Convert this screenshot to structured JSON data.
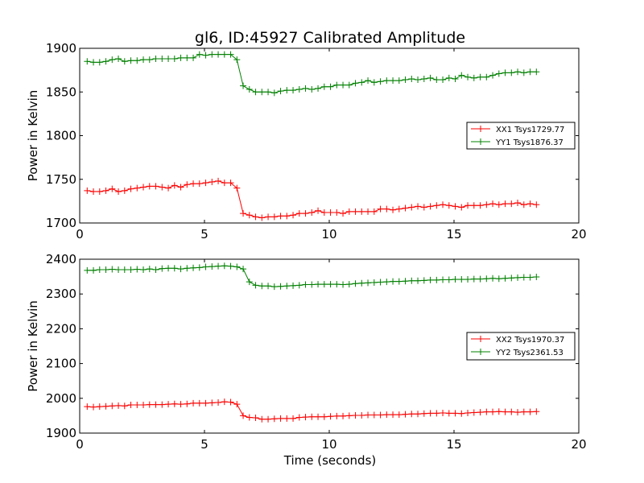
{
  "figure": {
    "title": "gl6, ID:45927 Calibrated Amplitude",
    "xlabel": "Time (seconds)"
  },
  "colors": {
    "red": "#ff0000",
    "green": "#008000",
    "axes": "#000000"
  },
  "chart_data": [
    {
      "type": "line",
      "title": "gl6, ID:45927 Calibrated Amplitude",
      "xlabel": "",
      "ylabel": "Power in Kelvin",
      "xlim": [
        0,
        20
      ],
      "ylim": [
        1700,
        1900
      ],
      "xticks": [
        0,
        5,
        10,
        15,
        20
      ],
      "yticks": [
        1700,
        1750,
        1800,
        1850,
        1900
      ],
      "grid": false,
      "legend_position": "right",
      "series": [
        {
          "name": "XX1 Tsys1729.77",
          "color": "#ff0000",
          "x": [
            0.3,
            0.55,
            0.8,
            1.05,
            1.3,
            1.55,
            1.8,
            2.05,
            2.3,
            2.55,
            2.8,
            3.05,
            3.3,
            3.55,
            3.8,
            4.05,
            4.3,
            4.55,
            4.8,
            5.05,
            5.3,
            5.55,
            5.8,
            6.05,
            6.3,
            6.55,
            6.8,
            7.05,
            7.3,
            7.55,
            7.8,
            8.05,
            8.3,
            8.55,
            8.8,
            9.05,
            9.3,
            9.55,
            9.8,
            10.05,
            10.3,
            10.55,
            10.8,
            11.05,
            11.3,
            11.55,
            11.8,
            12.05,
            12.3,
            12.55,
            12.8,
            13.05,
            13.3,
            13.55,
            13.8,
            14.05,
            14.3,
            14.55,
            14.8,
            15.05,
            15.3,
            15.55,
            15.8,
            16.05,
            16.3,
            16.55,
            16.8,
            17.05,
            17.3,
            17.55,
            17.8,
            18.05,
            18.3
          ],
          "y": [
            1737,
            1736,
            1736,
            1737,
            1739,
            1736,
            1737,
            1739,
            1740,
            1741,
            1742,
            1742,
            1741,
            1740,
            1743,
            1741,
            1744,
            1745,
            1745,
            1746,
            1747,
            1748,
            1746,
            1746,
            1740,
            1711,
            1709,
            1707,
            1706,
            1707,
            1707,
            1708,
            1708,
            1709,
            1711,
            1711,
            1712,
            1714,
            1712,
            1712,
            1712,
            1711,
            1713,
            1713,
            1713,
            1713,
            1713,
            1716,
            1716,
            1715,
            1716,
            1717,
            1718,
            1719,
            1718,
            1719,
            1720,
            1721,
            1720,
            1719,
            1718,
            1720,
            1720,
            1720,
            1721,
            1722,
            1721,
            1722,
            1722,
            1723,
            1721,
            1722,
            1721
          ]
        },
        {
          "name": "YY1 Tsys1876.37",
          "color": "#008000",
          "x": [
            0.3,
            0.55,
            0.8,
            1.05,
            1.3,
            1.55,
            1.8,
            2.05,
            2.3,
            2.55,
            2.8,
            3.05,
            3.3,
            3.55,
            3.8,
            4.05,
            4.3,
            4.55,
            4.8,
            5.05,
            5.3,
            5.55,
            5.8,
            6.05,
            6.3,
            6.55,
            6.8,
            7.05,
            7.3,
            7.55,
            7.8,
            8.05,
            8.3,
            8.55,
            8.8,
            9.05,
            9.3,
            9.55,
            9.8,
            10.05,
            10.3,
            10.55,
            10.8,
            11.05,
            11.3,
            11.55,
            11.8,
            12.05,
            12.3,
            12.55,
            12.8,
            13.05,
            13.3,
            13.55,
            13.8,
            14.05,
            14.3,
            14.55,
            14.8,
            15.05,
            15.3,
            15.55,
            15.8,
            16.05,
            16.3,
            16.55,
            16.8,
            17.05,
            17.3,
            17.55,
            17.8,
            18.05,
            18.3
          ],
          "y": [
            1885,
            1884,
            1884,
            1885,
            1887,
            1888,
            1885,
            1886,
            1886,
            1887,
            1887,
            1888,
            1888,
            1888,
            1888,
            1889,
            1889,
            1889,
            1893,
            1892,
            1893,
            1893,
            1893,
            1893,
            1887,
            1857,
            1853,
            1850,
            1850,
            1850,
            1849,
            1851,
            1852,
            1852,
            1853,
            1854,
            1853,
            1854,
            1856,
            1856,
            1858,
            1858,
            1858,
            1860,
            1861,
            1863,
            1861,
            1862,
            1863,
            1863,
            1863,
            1864,
            1865,
            1864,
            1865,
            1866,
            1864,
            1864,
            1866,
            1865,
            1869,
            1867,
            1866,
            1867,
            1867,
            1869,
            1871,
            1872,
            1872,
            1873,
            1872,
            1873,
            1873
          ]
        }
      ]
    },
    {
      "type": "line",
      "title": "",
      "xlabel": "Time (seconds)",
      "ylabel": "Power in Kelvin",
      "xlim": [
        0,
        20
      ],
      "ylim": [
        1900,
        2400
      ],
      "xticks": [
        0,
        5,
        10,
        15,
        20
      ],
      "yticks": [
        1900,
        2000,
        2100,
        2200,
        2300,
        2400
      ],
      "grid": false,
      "legend_position": "right",
      "series": [
        {
          "name": "XX2 Tsys1970.37",
          "color": "#ff0000",
          "x": [
            0.3,
            0.55,
            0.8,
            1.05,
            1.3,
            1.55,
            1.8,
            2.05,
            2.3,
            2.55,
            2.8,
            3.05,
            3.3,
            3.55,
            3.8,
            4.05,
            4.3,
            4.55,
            4.8,
            5.05,
            5.3,
            5.55,
            5.8,
            6.05,
            6.3,
            6.55,
            6.8,
            7.05,
            7.3,
            7.55,
            7.8,
            8.05,
            8.3,
            8.55,
            8.8,
            9.05,
            9.3,
            9.55,
            9.8,
            10.05,
            10.3,
            10.55,
            10.8,
            11.05,
            11.3,
            11.55,
            11.8,
            12.05,
            12.3,
            12.55,
            12.8,
            13.05,
            13.3,
            13.55,
            13.8,
            14.05,
            14.3,
            14.55,
            14.8,
            15.05,
            15.3,
            15.55,
            15.8,
            16.05,
            16.3,
            16.55,
            16.8,
            17.05,
            17.3,
            17.55,
            17.8,
            18.05,
            18.3
          ],
          "y": [
            1976,
            1975,
            1976,
            1977,
            1978,
            1979,
            1978,
            1981,
            1981,
            1981,
            1982,
            1982,
            1982,
            1983,
            1984,
            1983,
            1984,
            1986,
            1986,
            1986,
            1987,
            1988,
            1990,
            1989,
            1983,
            1950,
            1945,
            1944,
            1940,
            1940,
            1941,
            1942,
            1942,
            1942,
            1945,
            1946,
            1947,
            1947,
            1947,
            1948,
            1949,
            1949,
            1950,
            1951,
            1951,
            1952,
            1952,
            1952,
            1953,
            1953,
            1953,
            1954,
            1955,
            1955,
            1956,
            1957,
            1957,
            1958,
            1957,
            1957,
            1956,
            1958,
            1959,
            1960,
            1961,
            1961,
            1962,
            1961,
            1961,
            1960,
            1961,
            1961,
            1962
          ]
        },
        {
          "name": "YY2 Tsys2361.53",
          "color": "#008000",
          "x": [
            0.3,
            0.55,
            0.8,
            1.05,
            1.3,
            1.55,
            1.8,
            2.05,
            2.3,
            2.55,
            2.8,
            3.05,
            3.3,
            3.55,
            3.8,
            4.05,
            4.3,
            4.55,
            4.8,
            5.05,
            5.3,
            5.55,
            5.8,
            6.05,
            6.3,
            6.55,
            6.8,
            7.05,
            7.3,
            7.55,
            7.8,
            8.05,
            8.3,
            8.55,
            8.8,
            9.05,
            9.3,
            9.55,
            9.8,
            10.05,
            10.3,
            10.55,
            10.8,
            11.05,
            11.3,
            11.55,
            11.8,
            12.05,
            12.3,
            12.55,
            12.8,
            13.05,
            13.3,
            13.55,
            13.8,
            14.05,
            14.3,
            14.55,
            14.8,
            15.05,
            15.3,
            15.55,
            15.8,
            16.05,
            16.3,
            16.55,
            16.8,
            17.05,
            17.3,
            17.55,
            17.8,
            18.05,
            18.3
          ],
          "y": [
            2368,
            2368,
            2370,
            2370,
            2371,
            2370,
            2370,
            2370,
            2371,
            2370,
            2372,
            2370,
            2373,
            2374,
            2374,
            2372,
            2374,
            2375,
            2376,
            2378,
            2379,
            2380,
            2381,
            2380,
            2378,
            2372,
            2335,
            2325,
            2323,
            2323,
            2321,
            2322,
            2323,
            2324,
            2325,
            2327,
            2327,
            2328,
            2328,
            2328,
            2328,
            2327,
            2328,
            2330,
            2331,
            2332,
            2333,
            2334,
            2335,
            2336,
            2336,
            2337,
            2338,
            2338,
            2339,
            2340,
            2340,
            2341,
            2341,
            2342,
            2342,
            2342,
            2343,
            2343,
            2344,
            2345,
            2344,
            2345,
            2346,
            2347,
            2348,
            2348,
            2349
          ]
        }
      ]
    }
  ]
}
